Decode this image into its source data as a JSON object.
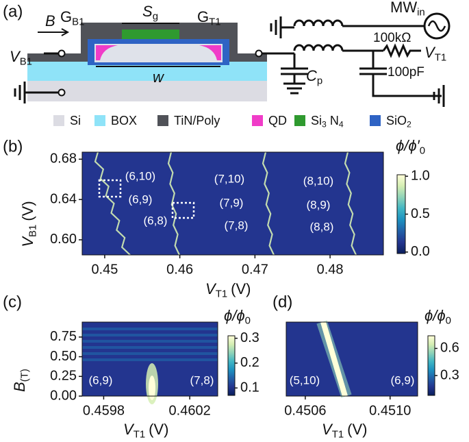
{
  "panel_a": {
    "label": "(a)",
    "field": "B",
    "gate_b1": [
      "G",
      "B1"
    ],
    "gate_sg": [
      "S",
      "g"
    ],
    "gate_t1": [
      "G",
      "T1"
    ],
    "width": "w",
    "vb1": [
      "V",
      "B1"
    ],
    "mw": [
      "MW",
      "in"
    ],
    "resistor": "100kΩ",
    "vt1": [
      "V",
      "T1"
    ],
    "cp": [
      "C",
      "p"
    ],
    "capacitor": "100pF",
    "legend": [
      {
        "parts": [
          "Si"
        ],
        "color": "#dcdce3"
      },
      {
        "parts": [
          "BOX"
        ],
        "color": "#8fe3f8"
      },
      {
        "parts": [
          "TiN/Poly"
        ],
        "color": "#505258"
      },
      {
        "parts": [
          "QD"
        ],
        "color": "#f03cc8"
      },
      {
        "parts": [
          "Si",
          "3",
          "N",
          "4"
        ],
        "color": "#2f9a2f"
      },
      {
        "parts": [
          "SiO",
          "2"
        ],
        "color": "#2e63c4"
      }
    ]
  },
  "chart_data": [
    {
      "type": "heatmap",
      "label": "(b)",
      "xlabel": [
        "V",
        "T1",
        "(V)"
      ],
      "ylabel": [
        "V",
        "B1",
        "(V)"
      ],
      "xlim": [
        0.447,
        0.4871
      ],
      "xticks": [
        0.45,
        0.46,
        0.47,
        0.48
      ],
      "ylim": [
        0.585,
        0.687
      ],
      "yticks": [
        {
          "value": 0.6,
          "label": "0.60"
        },
        0.64,
        0.68
      ],
      "colorbar": {
        "title": [
          "ϕ/ϕ′",
          "0"
        ],
        "lim": [
          -0.02,
          1.02
        ],
        "ticks": [
          {
            "value": 0,
            "label": "0.0"
          },
          0.5,
          {
            "value": 1,
            "label": "1.0"
          }
        ]
      },
      "annotations": [
        "(6,10)",
        "(6,9)",
        "(6,8)",
        "(7,10)",
        "(7,9)",
        "(7,8)",
        "(8,10)",
        "(8,9)",
        "(8,8)"
      ],
      "colormap": [
        "#0a1f5c",
        "#23358f",
        "#2260a8",
        "#1d91c0",
        "#41b6c4",
        "#8fd3b8",
        "#d5eeb3",
        "#ffffd9"
      ]
    },
    {
      "type": "heatmap",
      "label": "(c)",
      "xlabel": [
        "V",
        "T1",
        "(V)"
      ],
      "ylabel": [
        "B",
        "(T)"
      ],
      "xlim": [
        0.4597,
        0.46033
      ],
      "xticks": [
        0.4598,
        0.4602
      ],
      "ylim": [
        0,
        0.94
      ],
      "yticks": [
        {
          "value": 0,
          "label": "0.00"
        },
        0.25,
        {
          "value": 0.5,
          "label": "0.50"
        },
        0.75
      ],
      "colorbar": {
        "title": [
          "ϕ/ϕ",
          "0"
        ],
        "lim": [
          0.07,
          0.31
        ],
        "ticks": [
          0.1,
          0.2,
          0.3
        ]
      },
      "annotations": [
        "(6,9)",
        "(7,8)"
      ],
      "colormap": [
        "#0a1f5c",
        "#23358f",
        "#2260a8",
        "#1d91c0",
        "#41b6c4",
        "#8fd3b8",
        "#d5eeb3",
        "#ffffd9"
      ]
    },
    {
      "type": "heatmap",
      "label": "(d)",
      "xlabel": [
        "V",
        "T1",
        "(V)"
      ],
      "xlim": [
        0.45051,
        0.45113
      ],
      "xticks": [
        0.4506,
        {
          "value": 0.451,
          "label": "0.4510"
        }
      ],
      "colorbar": {
        "title": [
          "ϕ/ϕ",
          "0"
        ],
        "lim": [
          0.08,
          0.74
        ],
        "ticks": [
          0.3,
          0.6
        ]
      },
      "annotations": [
        "(5,10)",
        "(6,9)"
      ],
      "colormap": [
        "#0a1f5c",
        "#23358f",
        "#2260a8",
        "#1d91c0",
        "#41b6c4",
        "#8fd3b8",
        "#d5eeb3",
        "#ffffd9"
      ]
    }
  ]
}
